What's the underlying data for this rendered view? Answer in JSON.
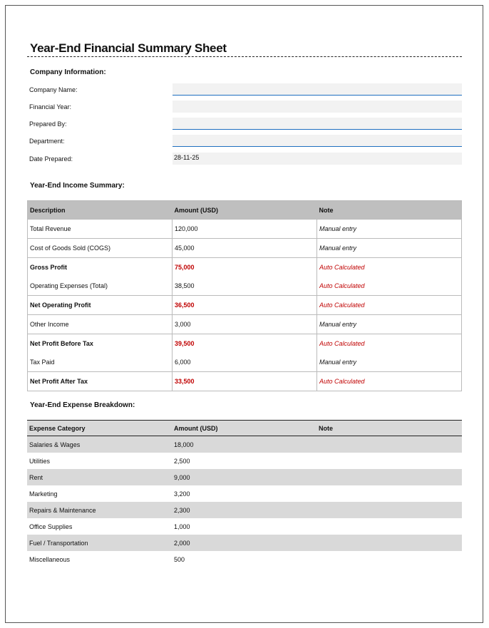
{
  "title": "Year-End Financial Summary Sheet",
  "company_info": {
    "heading": "Company Information:",
    "fields": [
      {
        "label": "Company Name:",
        "value": ""
      },
      {
        "label": "Financial Year:",
        "value": ""
      },
      {
        "label": "Prepared By:",
        "value": ""
      },
      {
        "label": "Department:",
        "value": ""
      },
      {
        "label": "Date Prepared:",
        "value": "28-11-25"
      }
    ]
  },
  "income": {
    "heading": "Year-End Income Summary:",
    "columns": [
      "Description",
      "Amount (USD)",
      "Note"
    ],
    "rows": [
      {
        "desc": "Total Revenue",
        "amount": "120,000",
        "note": "Manual entry"
      },
      {
        "desc": "Cost of Goods Sold (COGS)",
        "amount": "45,000",
        "note": "Manual entry"
      },
      {
        "desc": "Gross Profit",
        "amount": "75,000",
        "note": "Auto Calculated"
      },
      {
        "desc": "Operating Expenses (Total)",
        "amount": "38,500",
        "note": "Auto Calculated"
      },
      {
        "desc": "Net Operating Profit",
        "amount": "36,500",
        "note": "Auto Calculated"
      },
      {
        "desc": "Other Income",
        "amount": "3,000",
        "note": "Manual entry"
      },
      {
        "desc": "Net Profit Before Tax",
        "amount": "39,500",
        "note": "Auto Calculated"
      },
      {
        "desc": "Tax Paid",
        "amount": "6,000",
        "note": "Manual entry"
      },
      {
        "desc": "Net Profit After Tax",
        "amount": "33,500",
        "note": "Auto Calculated"
      }
    ]
  },
  "expenses": {
    "heading": "Year-End Expense Breakdown:",
    "columns": [
      "Expense Category",
      "Amount (USD)",
      "Note"
    ],
    "rows": [
      {
        "cat": "Salaries & Wages",
        "amount": "18,000"
      },
      {
        "cat": "Utilities",
        "amount": "2,500"
      },
      {
        "cat": "Rent",
        "amount": "9,000"
      },
      {
        "cat": "Marketing",
        "amount": "3,200"
      },
      {
        "cat": "Repairs & Maintenance",
        "amount": "2,300"
      },
      {
        "cat": "Office Supplies",
        "amount": "1,000"
      },
      {
        "cat": "Fuel / Transportation",
        "amount": "2,000"
      },
      {
        "cat": "Miscellaneous",
        "amount": "500"
      }
    ]
  },
  "colors": {
    "accent": "#1f6fc0",
    "calculated": "#c00000"
  }
}
